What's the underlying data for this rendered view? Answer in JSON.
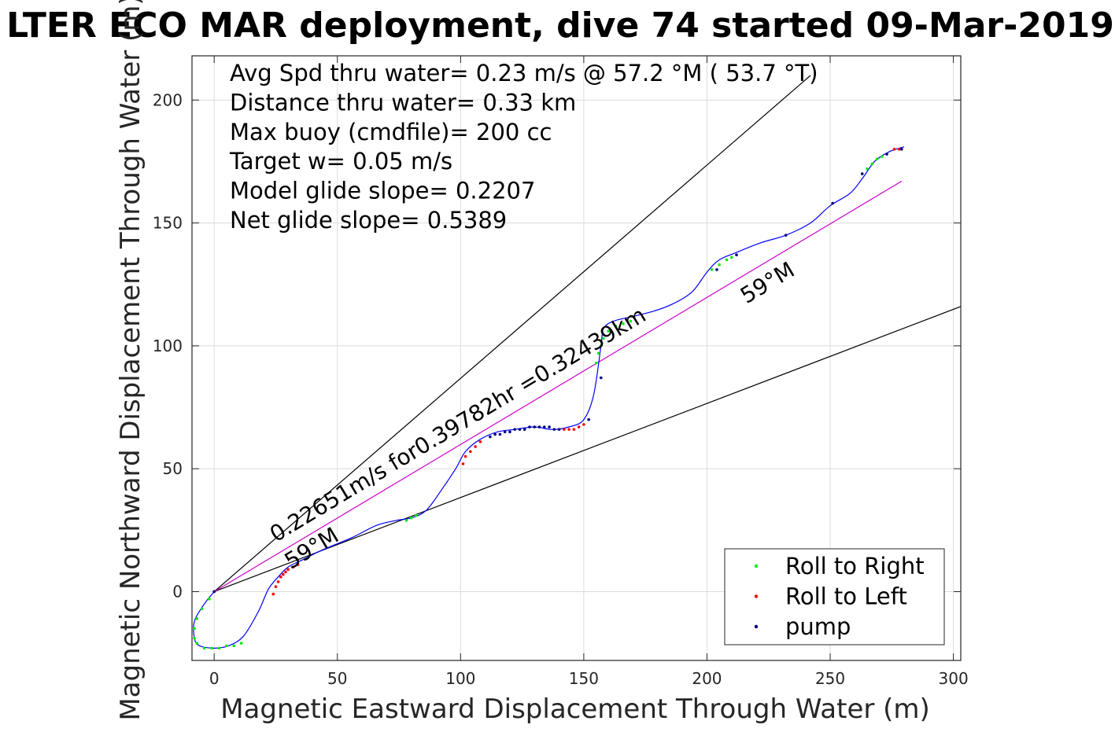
{
  "chart_data": {
    "type": "scatter",
    "title": "LTER ECO MAR deployment, dive 74 started 09-Mar-2019",
    "xlabel": "Magnetic Eastward Displacement Through Water (m)",
    "ylabel": "Magnetic Northward Displacement Through Water (m)",
    "xlim": [
      -9,
      303
    ],
    "ylim": [
      -28,
      218
    ],
    "xticks": [
      0,
      50,
      100,
      150,
      200,
      250,
      300
    ],
    "yticks": [
      0,
      50,
      100,
      150,
      200
    ],
    "grid": true,
    "legend_position": "bottom-right",
    "info_lines": [
      "Avg Spd thru water=  0.23 m/s @  57.2 °M ( 53.7 °T)",
      "Distance thru water=  0.33 km",
      "Max buoy (cmdfile)= 200 cc",
      "Target w= 0.05 m/s",
      "Model glide slope= 0.2207",
      "Net glide slope= 0.5389"
    ],
    "annotations": [
      {
        "text": "0.22651m/s for0.39782hr =0.32439km",
        "x": 25,
        "y": 20,
        "angle_deg": 31
      },
      {
        "text": "59°M",
        "x": 31,
        "y": 9,
        "angle_deg": 31
      },
      {
        "text": "59°M",
        "x": 216,
        "y": 117,
        "angle_deg": 31
      }
    ],
    "reference_lines": [
      {
        "name": "upper-bound",
        "color": "#000000",
        "x": [
          0,
          242
        ],
        "y": [
          0,
          210
        ]
      },
      {
        "name": "lower-bound",
        "color": "#000000",
        "x": [
          0,
          303
        ],
        "y": [
          0,
          116
        ]
      },
      {
        "name": "heading-59M",
        "color": "#cc00cc",
        "x": [
          0,
          279
        ],
        "y": [
          0,
          167
        ]
      }
    ],
    "track": {
      "color": "#0000ff",
      "x": [
        0,
        -4,
        -8,
        -8,
        -6,
        0,
        6,
        12,
        18,
        22,
        26,
        30,
        36,
        44,
        56,
        66,
        74,
        80,
        86,
        92,
        98,
        102,
        108,
        115,
        122,
        130,
        137,
        144,
        150,
        154,
        157,
        158,
        162,
        170,
        178,
        186,
        194,
        200,
        205,
        212,
        222,
        232,
        242,
        250,
        258,
        263,
        268,
        274,
        280
      ],
      "y": [
        0,
        -5,
        -12,
        -19,
        -22,
        -23,
        -22,
        -18,
        -8,
        1,
        6,
        10,
        13,
        17,
        22,
        27,
        29,
        30,
        33,
        41,
        50,
        57,
        62,
        65,
        66,
        67,
        66,
        67,
        70,
        80,
        100,
        107,
        110,
        112,
        114,
        117,
        122,
        130,
        135,
        138,
        142,
        145,
        150,
        157,
        162,
        168,
        175,
        179,
        181
      ]
    },
    "series": [
      {
        "name": "Roll to Right",
        "color": "#00ee00",
        "x": [
          -2,
          -5,
          -7,
          -8,
          -8,
          -7,
          -4,
          -1,
          2,
          5,
          8,
          11,
          78,
          80,
          82,
          155,
          156,
          157,
          158,
          160,
          163,
          166,
          169,
          202,
          205,
          208,
          210,
          263,
          265,
          267,
          269,
          271
        ],
        "y": [
          -3,
          -7,
          -11,
          -15,
          -19,
          -21,
          -23,
          -23,
          -23,
          -22,
          -22,
          -21,
          29,
          30,
          31,
          93,
          97,
          100,
          103,
          106,
          108,
          109,
          110,
          131,
          133,
          135,
          136,
          170,
          172,
          174,
          176,
          177
        ]
      },
      {
        "name": "Roll to Left",
        "color": "#ff0000",
        "x": [
          24,
          25,
          26,
          27,
          28,
          29,
          30,
          32,
          34,
          101,
          102,
          104,
          106,
          108,
          142,
          144,
          146,
          148,
          150,
          276,
          278
        ],
        "y": [
          -1,
          2,
          4,
          6,
          7,
          8,
          9,
          10,
          11,
          52,
          55,
          57,
          59,
          61,
          66,
          66,
          66,
          67,
          68,
          180,
          180
        ]
      },
      {
        "name": "pump",
        "color": "#000080",
        "x": [
          0,
          112,
          114,
          116,
          118,
          120,
          122,
          124,
          126,
          128,
          130,
          132,
          134,
          136,
          138,
          140,
          152,
          157,
          204,
          212,
          232,
          251,
          263,
          273,
          279
        ],
        "y": [
          0,
          63,
          64,
          64,
          65,
          65,
          66,
          66,
          66,
          67,
          67,
          67,
          67,
          67,
          66,
          66,
          70,
          87,
          131,
          137,
          145,
          158,
          170,
          178,
          180
        ]
      }
    ]
  }
}
